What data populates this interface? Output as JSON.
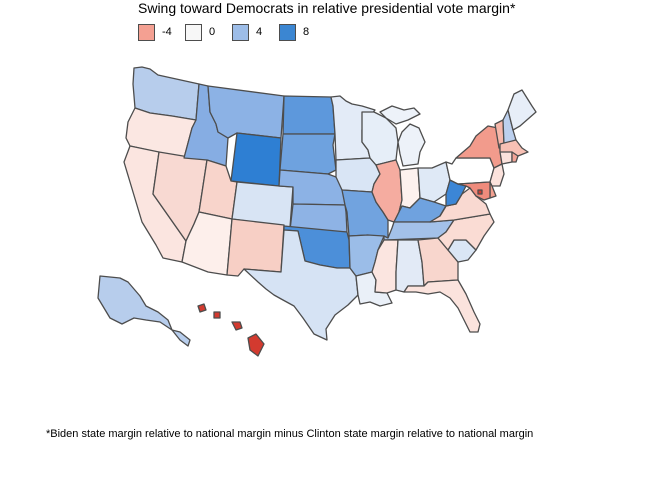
{
  "title": "Swing toward Democrats in relative presidential vote margin*",
  "legend": [
    {
      "label": "-4",
      "color": "#f4a092"
    },
    {
      "label": "0",
      "color": "#f7f7f7"
    },
    {
      "label": "4",
      "color": "#9dbde8"
    },
    {
      "label": "8",
      "color": "#3b86d2"
    }
  ],
  "footnote": "*Biden state margin relative to national margin minus Clinton state margin relative to national margin",
  "color_scale": {
    "low": "#d33a2f",
    "mid": "#f7f7f7",
    "high": "#3b86d2"
  },
  "state_fills": {
    "WA": "#b7cdec",
    "OR": "#fbe7e2",
    "CA": "#fbe5e0",
    "NV": "#f8d9d2",
    "ID": "#86ade3",
    "MT": "#8cb2e5",
    "WY": "#2e7fd3",
    "UT": "#f8d4cb",
    "AZ": "#fdefeb",
    "CO": "#d8e4f4",
    "NM": "#f7cfc5",
    "ND": "#5d98dc",
    "SD": "#6ea2df",
    "NE": "#8cb2e5",
    "KS": "#8eb3e5",
    "OK": "#4c8fd9",
    "TX": "#d6e3f4",
    "MN": "#e3ebf7",
    "IA": "#d9e5f5",
    "MO": "#71a3df",
    "AR": "#9bbde8",
    "LA": "#eaf0f8",
    "WI": "#e6eef8",
    "IL": "#f5aca0",
    "MI": "#edf2f9",
    "IN": "#fdf1ee",
    "OH": "#dfe9f6",
    "KY": "#6fa2df",
    "TN": "#a3c1e9",
    "MS": "#fbe5e0",
    "AL": "#e2eaf6",
    "GA": "#f8d6cd",
    "FL": "#fbe3dd",
    "SC": "#dae6f5",
    "NC": "#fadcd4",
    "VA": "#f9d9d1",
    "WV": "#3c86d6",
    "PA": "#ffffff",
    "NY": "#f29b8c",
    "VT": "#f6b7aa",
    "NH": "#bcd0ee",
    "ME": "#e7eef8",
    "MA": "#f7c0b4",
    "CT": "#fbe2dc",
    "RI": "#f2a497",
    "NJ": "#fbe2dc",
    "DE": "#f3a191",
    "MD": "#ef8b7c",
    "DC": "#d33a2f",
    "AK": "#b7cdec",
    "HI": "#d33a2f"
  }
}
